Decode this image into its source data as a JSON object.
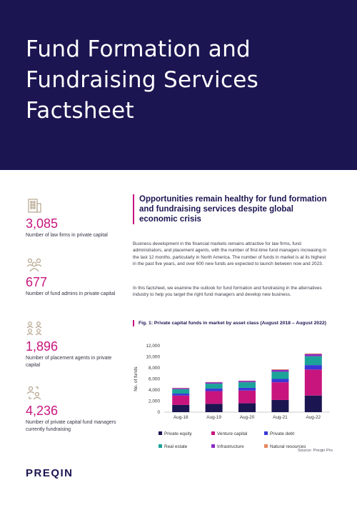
{
  "header": {
    "title": "Fund Formation and Fundraising Services Factsheet"
  },
  "colors": {
    "navy": "#1b1551",
    "magenta": "#c8157e",
    "icon": "#b5a58d"
  },
  "stats": [
    {
      "icon": "building-icon",
      "value": "3,085",
      "label": "Number of law firms in private capital"
    },
    {
      "icon": "people-group-icon",
      "value": "677",
      "label": "Number of fund admins in private capital"
    },
    {
      "icon": "people-network-icon",
      "value": "1,896",
      "label": "Number of placement agents in private capital"
    },
    {
      "icon": "people-search-icon",
      "value": "4,236",
      "label": "Number of private capital fund managers currently fundraising"
    }
  ],
  "section": {
    "title": "Opportunities remain healthy for fund formation and fundraising services despite global economic crisis",
    "paragraphs": [
      "Business development in the financial markets remains attractive for law firms, fund administrators, and placement agents, with the number of first-time fund managers increasing in the last 12 months, particularly in North America. The number of funds in market is at its highest in the past five years, and over 600 new funds are expected to launch between now and 2023.",
      "In this factsheet, we examine the outlook for fund formation and fundraising in the alternatives industry to help you target the right fund managers and develop new business."
    ]
  },
  "figure": {
    "title": "Fig. 1: Private capital funds in market by asset class (August 2018 – August 2022)",
    "source": "Source: Preqin Pro"
  },
  "chart_data": {
    "type": "bar",
    "stacked": true,
    "categories": [
      "Aug-18",
      "Aug-19",
      "Aug-20",
      "Aug-21",
      "Aug-22"
    ],
    "ylabel": "No. of funds",
    "ylim": [
      0,
      12000
    ],
    "yticks": [
      0,
      2000,
      4000,
      6000,
      8000,
      10000,
      12000
    ],
    "ytick_labels": [
      "0",
      "2,000",
      "4,000",
      "6,000",
      "8,000",
      "10,000",
      "12,000"
    ],
    "legend_position": "bottom",
    "series": [
      {
        "name": "Private equity",
        "color": "#1b1551",
        "values": [
          1300,
          1500,
          1600,
          2200,
          3000
        ]
      },
      {
        "name": "Venture capital",
        "color": "#c8157e",
        "values": [
          1700,
          2300,
          2300,
          3200,
          4700
        ]
      },
      {
        "name": "Private debt",
        "color": "#3a37d6",
        "values": [
          350,
          450,
          500,
          600,
          800
        ]
      },
      {
        "name": "Real estate",
        "color": "#1ba39a",
        "values": [
          800,
          900,
          1000,
          1300,
          1600
        ]
      },
      {
        "name": "Infrastructure",
        "color": "#8a2bbe",
        "values": [
          200,
          250,
          250,
          350,
          400
        ]
      },
      {
        "name": "Natural resources",
        "color": "#e8875b",
        "values": [
          50,
          50,
          50,
          100,
          100
        ]
      }
    ]
  },
  "logo": {
    "text": "PREQIN"
  }
}
